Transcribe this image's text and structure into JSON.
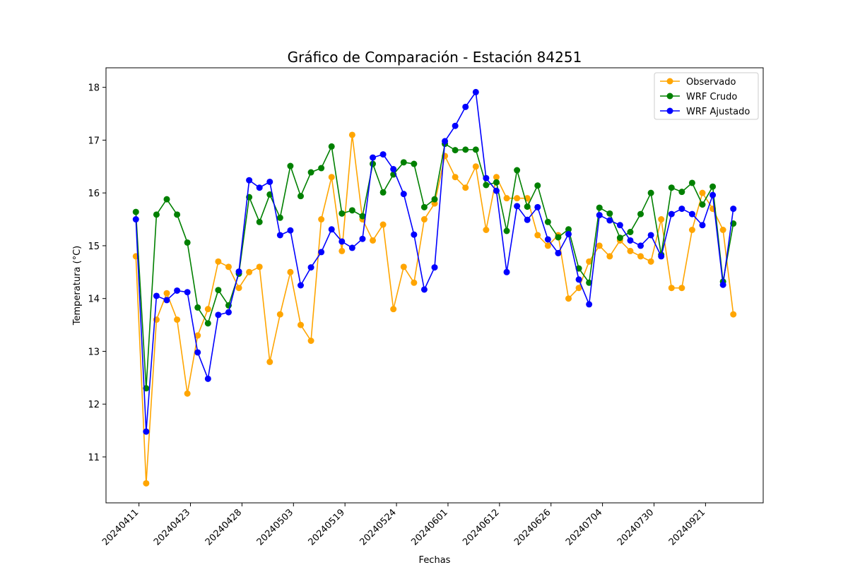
{
  "chart_data": {
    "type": "line",
    "title": "Gráfico de Comparación - Estación 84251",
    "xlabel": "Fechas",
    "ylabel": "Temperatura (°C)",
    "ylim": [
      10.13,
      18.37
    ],
    "yticks": [
      11,
      12,
      13,
      14,
      15,
      16,
      17,
      18
    ],
    "xtick_labels": [
      "20240411",
      "20240423",
      "20240428",
      "20240503",
      "20240519",
      "20240524",
      "20240601",
      "20240612",
      "20240626",
      "20240704",
      "20240730",
      "20240921"
    ],
    "xtick_index_positions": [
      0.3,
      5.3,
      10.3,
      15.3,
      20.3,
      25.3,
      30.3,
      35.3,
      40.3,
      45.3,
      50.3,
      55.3
    ],
    "x_index_range": [
      -2.9,
      60.9
    ],
    "grid": false,
    "legend_position": "top-right",
    "series": [
      {
        "name": "Observado",
        "color": "#FFA500",
        "values": [
          14.8,
          10.5,
          13.6,
          14.1,
          13.6,
          12.2,
          13.3,
          13.8,
          14.7,
          14.6,
          14.2,
          14.5,
          14.6,
          12.8,
          13.7,
          14.5,
          13.5,
          13.2,
          15.5,
          16.3,
          14.9,
          17.1,
          15.5,
          15.1,
          15.4,
          13.8,
          14.6,
          14.3,
          15.5,
          15.8,
          16.7,
          16.3,
          16.1,
          16.5,
          15.3,
          16.3,
          15.9,
          15.9,
          15.9,
          15.2,
          15.0,
          15.2,
          14.0,
          14.2,
          14.7,
          15.0,
          14.8,
          15.1,
          14.9,
          14.8,
          14.7,
          15.5,
          14.2,
          14.2,
          15.3,
          16.0,
          15.7,
          15.3,
          13.7
        ]
      },
      {
        "name": "WRF Crudo",
        "color": "#008000",
        "values": [
          15.64,
          12.3,
          15.59,
          15.88,
          15.59,
          15.06,
          13.83,
          13.53,
          14.16,
          13.87,
          14.47,
          15.92,
          15.45,
          15.97,
          15.53,
          16.51,
          15.94,
          16.39,
          16.47,
          16.88,
          15.61,
          15.67,
          15.56,
          16.55,
          16.01,
          16.35,
          16.58,
          16.55,
          15.73,
          15.88,
          16.93,
          16.81,
          16.82,
          16.82,
          16.15,
          16.2,
          15.28,
          16.43,
          15.74,
          16.14,
          15.45,
          15.16,
          15.31,
          14.57,
          14.3,
          15.72,
          15.61,
          15.15,
          15.26,
          15.6,
          16.0,
          14.83,
          16.1,
          16.02,
          16.19,
          15.78,
          16.12,
          14.32,
          15.42
        ]
      },
      {
        "name": "WRF Ajustado",
        "color": "#0000FF",
        "values": [
          15.5,
          11.48,
          14.05,
          13.97,
          14.15,
          14.12,
          12.98,
          12.48,
          13.69,
          13.74,
          14.51,
          16.24,
          16.1,
          16.21,
          15.2,
          15.29,
          14.25,
          14.59,
          14.88,
          15.31,
          15.08,
          14.96,
          15.13,
          16.67,
          16.73,
          16.45,
          15.98,
          15.21,
          14.17,
          14.59,
          16.98,
          17.27,
          17.63,
          17.91,
          16.28,
          16.04,
          14.5,
          15.75,
          15.49,
          15.73,
          15.12,
          14.86,
          15.22,
          14.36,
          13.89,
          15.58,
          15.48,
          15.39,
          15.1,
          15.0,
          15.2,
          14.8,
          15.6,
          15.7,
          15.6,
          15.39,
          15.96,
          14.26,
          15.7
        ]
      }
    ]
  }
}
